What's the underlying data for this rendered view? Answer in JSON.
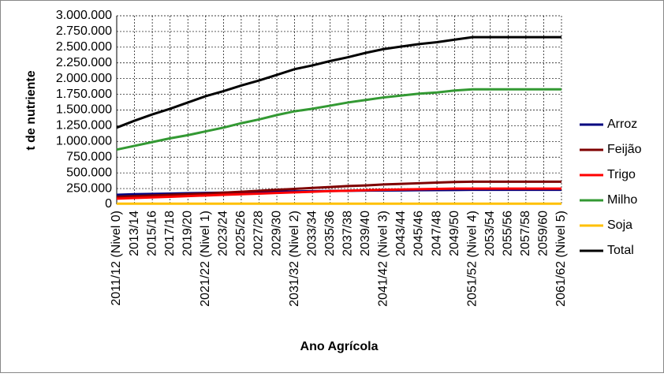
{
  "chart_data": {
    "type": "line",
    "y_label": "t de nutriente",
    "x_label": "Ano Agrícola",
    "categories": [
      "2011/12 (Nivel 0)",
      "2013/14",
      "2015/16",
      "2017/18",
      "2019/20",
      "2021/22 (Nivel 1)",
      "2023/24",
      "2025/26",
      "2027/28",
      "2029/30",
      "2031/32 (Nivel 2)",
      "2033/34",
      "2035/36",
      "2037/38",
      "2039/40",
      "2041/42 (Nivel 3)",
      "2043/44",
      "2045/46",
      "2047/48",
      "2049/50",
      "2051/52 (Nivel 4)",
      "2053/54",
      "2055/56",
      "2057/58",
      "2059/60",
      "2061/62 (Nivel 5)"
    ],
    "series": [
      {
        "name": "Arroz",
        "color": "#00007f",
        "values": [
          150000,
          160000,
          165000,
          170000,
          175000,
          180000,
          185000,
          190000,
          195000,
          200000,
          205000,
          208000,
          212000,
          215000,
          218000,
          220000,
          222000,
          224000,
          226000,
          228000,
          230000,
          230000,
          230000,
          230000,
          230000,
          230000
        ]
      },
      {
        "name": "Feijão",
        "color": "#7f0000",
        "values": [
          120000,
          130000,
          140000,
          150000,
          160000,
          170000,
          185000,
          200000,
          215000,
          230000,
          245000,
          260000,
          275000,
          290000,
          300000,
          315000,
          325000,
          335000,
          345000,
          355000,
          360000,
          360000,
          360000,
          360000,
          360000,
          360000
        ]
      },
      {
        "name": "Trigo",
        "color": "#ff0000",
        "values": [
          90000,
          100000,
          110000,
          120000,
          130000,
          140000,
          150000,
          160000,
          170000,
          180000,
          190000,
          200000,
          210000,
          215000,
          225000,
          230000,
          235000,
          240000,
          245000,
          250000,
          250000,
          250000,
          250000,
          250000,
          250000,
          250000
        ]
      },
      {
        "name": "Milho",
        "color": "#339933",
        "values": [
          870000,
          930000,
          990000,
          1050000,
          1100000,
          1160000,
          1220000,
          1290000,
          1350000,
          1420000,
          1480000,
          1520000,
          1570000,
          1620000,
          1660000,
          1700000,
          1730000,
          1760000,
          1780000,
          1810000,
          1830000,
          1830000,
          1830000,
          1830000,
          1830000,
          1830000
        ]
      },
      {
        "name": "Soja",
        "color": "#ffc000",
        "values": [
          10000,
          10000,
          10000,
          10000,
          10000,
          10000,
          10000,
          10000,
          10000,
          10000,
          10000,
          10000,
          10000,
          10000,
          10000,
          10000,
          10000,
          10000,
          10000,
          10000,
          10000,
          10000,
          10000,
          10000,
          10000,
          10000
        ]
      },
      {
        "name": "Total",
        "color": "#000000",
        "values": [
          1220000,
          1330000,
          1430000,
          1520000,
          1620000,
          1720000,
          1800000,
          1890000,
          1970000,
          2060000,
          2150000,
          2210000,
          2280000,
          2340000,
          2410000,
          2470000,
          2510000,
          2550000,
          2580000,
          2620000,
          2660000,
          2660000,
          2660000,
          2660000,
          2660000,
          2660000
        ]
      }
    ],
    "ylim": [
      0,
      3000000
    ],
    "yticks": [
      0,
      {
        "value": 250000,
        "label": "250.000"
      },
      {
        "value": 500000,
        "label": "500.000"
      },
      {
        "value": 750000,
        "label": "750.000"
      },
      {
        "value": 1000000,
        "label": "1.000.000"
      },
      {
        "value": 1250000,
        "label": "1.250.000"
      },
      {
        "value": 1500000,
        "label": "1.500.000"
      },
      {
        "value": 1750000,
        "label": "1.750.000"
      },
      {
        "value": 2000000,
        "label": "2.000.000"
      },
      {
        "value": 2250000,
        "label": "2.250.000"
      },
      {
        "value": 2500000,
        "label": "2.500.000"
      },
      {
        "value": 2750000,
        "label": "2.750.000"
      },
      {
        "value": 3000000,
        "label": "3.000.000"
      }
    ],
    "grid": true,
    "legend": "right"
  }
}
